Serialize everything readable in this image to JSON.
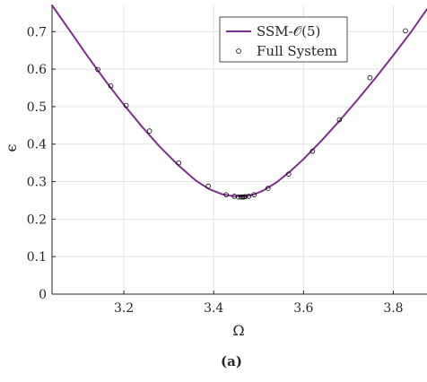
{
  "chart_data": {
    "type": "line",
    "xlabel": "Ω",
    "ylabel": "ϵ",
    "xlim": [
      3.04,
      3.875
    ],
    "ylim": [
      0,
      0.77
    ],
    "x_ticks": [
      3.2,
      3.4,
      3.6,
      3.8
    ],
    "x_tick_labels": [
      "3.2",
      "3.4",
      "3.6",
      "3.8"
    ],
    "y_ticks": [
      0,
      0.1,
      0.2,
      0.3,
      0.4,
      0.5,
      0.6,
      0.7
    ],
    "y_tick_labels": [
      "0",
      "0.1",
      "0.2",
      "0.3",
      "0.4",
      "0.5",
      "0.6",
      "0.7"
    ],
    "grid": true,
    "legend_position": "top-right",
    "series": [
      {
        "name": "SSM-𝒪(5)",
        "kind": "line",
        "color": "#7E2F8E",
        "x": [
          3.04,
          3.08,
          3.12,
          3.16,
          3.2,
          3.24,
          3.28,
          3.32,
          3.36,
          3.39,
          3.42,
          3.44,
          3.455,
          3.465,
          3.475,
          3.49,
          3.51,
          3.54,
          3.57,
          3.6,
          3.64,
          3.68,
          3.72,
          3.76,
          3.8,
          3.84,
          3.875
        ],
        "y": [
          0.77,
          0.702,
          0.633,
          0.567,
          0.505,
          0.447,
          0.393,
          0.345,
          0.303,
          0.28,
          0.266,
          0.262,
          0.261,
          0.261,
          0.262,
          0.266,
          0.276,
          0.298,
          0.327,
          0.36,
          0.409,
          0.462,
          0.518,
          0.576,
          0.637,
          0.7,
          0.76
        ]
      },
      {
        "name": "Full System",
        "kind": "scatter",
        "marker": "circle",
        "color": "#000000",
        "x": [
          3.142,
          3.171,
          3.205,
          3.257,
          3.322,
          3.388,
          3.428,
          3.446,
          3.455,
          3.461,
          3.464,
          3.467,
          3.47,
          3.478,
          3.49,
          3.521,
          3.567,
          3.62,
          3.68,
          3.748,
          3.827
        ],
        "y": [
          0.599,
          0.555,
          0.503,
          0.435,
          0.35,
          0.288,
          0.265,
          0.261,
          0.259,
          0.259,
          0.259,
          0.259,
          0.26,
          0.261,
          0.265,
          0.282,
          0.32,
          0.381,
          0.465,
          0.577,
          0.702
        ]
      }
    ]
  },
  "caption": "(a)"
}
